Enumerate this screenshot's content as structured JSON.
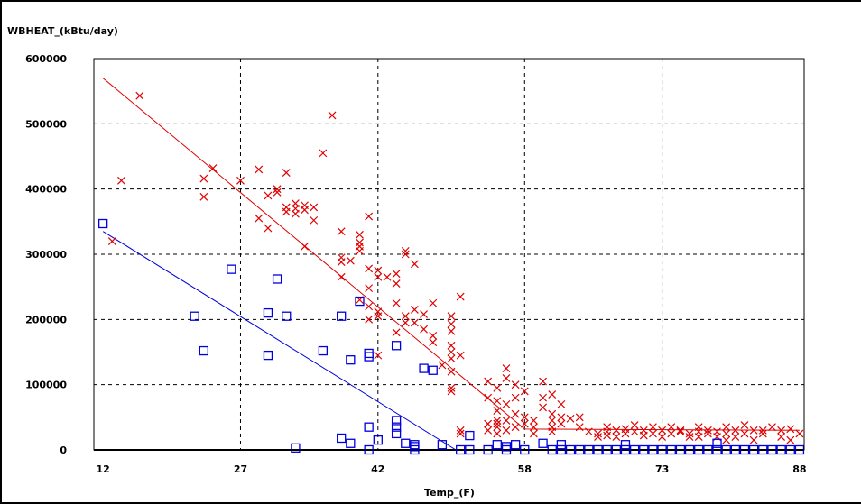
{
  "chart_data": {
    "type": "scatter",
    "ylabel": "WBHEAT_(kBtu/day)",
    "xlabel": "Temp_(F)",
    "x_ticks": [
      12,
      27,
      42,
      58,
      73,
      88
    ],
    "y_ticks": [
      0,
      100000,
      200000,
      300000,
      400000,
      500000,
      600000
    ],
    "xlim": [
      11,
      88.5
    ],
    "ylim": [
      0,
      600000
    ],
    "grid": true,
    "series": [
      {
        "marker": "x",
        "color": "#e00000",
        "points": [
          [
            13,
            320000
          ],
          [
            14,
            413000
          ],
          [
            16,
            543000
          ],
          [
            23,
            388000
          ],
          [
            23,
            416000
          ],
          [
            24,
            432000
          ],
          [
            27,
            413000
          ],
          [
            29,
            355000
          ],
          [
            29,
            430000
          ],
          [
            30,
            340000
          ],
          [
            30,
            390000
          ],
          [
            31,
            395000
          ],
          [
            31,
            400000
          ],
          [
            32,
            365000
          ],
          [
            32,
            372000
          ],
          [
            32,
            425000
          ],
          [
            33,
            362000
          ],
          [
            33,
            370000
          ],
          [
            33,
            378000
          ],
          [
            34,
            368000
          ],
          [
            34,
            375000
          ],
          [
            35,
            352000
          ],
          [
            35,
            372000
          ],
          [
            34,
            312000
          ],
          [
            36,
            455000
          ],
          [
            37,
            513000
          ],
          [
            38,
            335000
          ],
          [
            38,
            295000
          ],
          [
            38,
            288000
          ],
          [
            38,
            265000
          ],
          [
            39,
            290000
          ],
          [
            40,
            312000
          ],
          [
            40,
            318000
          ],
          [
            40,
            330000
          ],
          [
            40,
            305000
          ],
          [
            40,
            230000
          ],
          [
            41,
            358000
          ],
          [
            41,
            278000
          ],
          [
            41,
            248000
          ],
          [
            41,
            220000
          ],
          [
            41,
            200000
          ],
          [
            42,
            205000
          ],
          [
            42,
            212000
          ],
          [
            42,
            265000
          ],
          [
            42,
            145000
          ],
          [
            42,
            275000
          ],
          [
            43,
            265000
          ],
          [
            44,
            270000
          ],
          [
            44,
            255000
          ],
          [
            44,
            225000
          ],
          [
            44,
            180000
          ],
          [
            45,
            305000
          ],
          [
            45,
            300000
          ],
          [
            45,
            205000
          ],
          [
            45,
            195000
          ],
          [
            46,
            285000
          ],
          [
            46,
            215000
          ],
          [
            46,
            195000
          ],
          [
            47,
            208000
          ],
          [
            47,
            185000
          ],
          [
            48,
            175000
          ],
          [
            48,
            225000
          ],
          [
            48,
            165000
          ],
          [
            49,
            130000
          ],
          [
            50,
            205000
          ],
          [
            50,
            193000
          ],
          [
            50,
            182000
          ],
          [
            50,
            160000
          ],
          [
            50,
            150000
          ],
          [
            50,
            140000
          ],
          [
            50,
            120000
          ],
          [
            50,
            95000
          ],
          [
            50,
            90000
          ],
          [
            51,
            235000
          ],
          [
            51,
            145000
          ],
          [
            51,
            30000
          ],
          [
            51,
            25000
          ],
          [
            54,
            105000
          ],
          [
            54,
            80000
          ],
          [
            54,
            40000
          ],
          [
            54,
            30000
          ],
          [
            55,
            95000
          ],
          [
            55,
            75000
          ],
          [
            55,
            60000
          ],
          [
            55,
            45000
          ],
          [
            55,
            40000
          ],
          [
            55,
            35000
          ],
          [
            55,
            25000
          ],
          [
            56,
            125000
          ],
          [
            56,
            110000
          ],
          [
            56,
            70000
          ],
          [
            56,
            45000
          ],
          [
            56,
            30000
          ],
          [
            57,
            100000
          ],
          [
            57,
            80000
          ],
          [
            57,
            55000
          ],
          [
            57,
            35000
          ],
          [
            58,
            90000
          ],
          [
            58,
            50000
          ],
          [
            58,
            40000
          ],
          [
            59,
            45000
          ],
          [
            59,
            35000
          ],
          [
            59,
            25000
          ],
          [
            60,
            105000
          ],
          [
            60,
            80000
          ],
          [
            60,
            65000
          ],
          [
            61,
            85000
          ],
          [
            61,
            55000
          ],
          [
            61,
            45000
          ],
          [
            61,
            35000
          ],
          [
            61,
            28000
          ],
          [
            62,
            70000
          ],
          [
            62,
            50000
          ],
          [
            62,
            40000
          ],
          [
            63,
            48000
          ],
          [
            64,
            50000
          ],
          [
            64,
            35000
          ],
          [
            65,
            28000
          ],
          [
            66,
            25000
          ],
          [
            66,
            20000
          ],
          [
            67,
            35000
          ],
          [
            67,
            28000
          ],
          [
            67,
            22000
          ],
          [
            68,
            30000
          ],
          [
            68,
            20000
          ],
          [
            69,
            32000
          ],
          [
            69,
            25000
          ],
          [
            70,
            38000
          ],
          [
            70,
            28000
          ],
          [
            71,
            30000
          ],
          [
            71,
            22000
          ],
          [
            72,
            35000
          ],
          [
            72,
            25000
          ],
          [
            73,
            30000
          ],
          [
            73,
            20000
          ],
          [
            74,
            35000
          ],
          [
            74,
            25000
          ],
          [
            75,
            30000
          ],
          [
            75,
            28000
          ],
          [
            76,
            25000
          ],
          [
            76,
            20000
          ],
          [
            77,
            35000
          ],
          [
            77,
            28000
          ],
          [
            77,
            20000
          ],
          [
            78,
            30000
          ],
          [
            78,
            25000
          ],
          [
            79,
            28000
          ],
          [
            79,
            20000
          ],
          [
            80,
            35000
          ],
          [
            80,
            25000
          ],
          [
            80,
            15000
          ],
          [
            81,
            30000
          ],
          [
            81,
            20000
          ],
          [
            82,
            38000
          ],
          [
            82,
            25000
          ],
          [
            83,
            30000
          ],
          [
            83,
            15000
          ],
          [
            84,
            30000
          ],
          [
            84,
            25000
          ],
          [
            85,
            35000
          ],
          [
            86,
            30000
          ],
          [
            86,
            20000
          ],
          [
            87,
            32000
          ],
          [
            87,
            15000
          ],
          [
            88,
            25000
          ]
        ]
      },
      {
        "marker": "square",
        "color": "#0000e0",
        "points": [
          [
            12,
            347000
          ],
          [
            22,
            205000
          ],
          [
            23,
            152000
          ],
          [
            26,
            277000
          ],
          [
            30,
            210000
          ],
          [
            30,
            145000
          ],
          [
            31,
            262000
          ],
          [
            32,
            205000
          ],
          [
            33,
            3000
          ],
          [
            36,
            152000
          ],
          [
            38,
            205000
          ],
          [
            38,
            18000
          ],
          [
            39,
            138000
          ],
          [
            39,
            10000
          ],
          [
            40,
            228000
          ],
          [
            41,
            148000
          ],
          [
            41,
            143000
          ],
          [
            41,
            35000
          ],
          [
            41,
            0
          ],
          [
            42,
            15000
          ],
          [
            44,
            45000
          ],
          [
            44,
            35000
          ],
          [
            44,
            25000
          ],
          [
            44,
            160000
          ],
          [
            45,
            10000
          ],
          [
            46,
            8000
          ],
          [
            46,
            5000
          ],
          [
            46,
            0
          ],
          [
            47,
            125000
          ],
          [
            48,
            122000
          ],
          [
            49,
            8000
          ],
          [
            51,
            0
          ],
          [
            52,
            22000
          ],
          [
            52,
            0
          ],
          [
            54,
            0
          ],
          [
            55,
            8000
          ],
          [
            56,
            5000
          ],
          [
            56,
            0
          ],
          [
            57,
            8000
          ],
          [
            58,
            0
          ],
          [
            60,
            10000
          ],
          [
            61,
            0
          ],
          [
            62,
            8000
          ],
          [
            62,
            0
          ],
          [
            63,
            0
          ],
          [
            64,
            0
          ],
          [
            65,
            0
          ],
          [
            66,
            0
          ],
          [
            67,
            0
          ],
          [
            68,
            0
          ],
          [
            69,
            8000
          ],
          [
            69,
            0
          ],
          [
            70,
            0
          ],
          [
            71,
            0
          ],
          [
            72,
            0
          ],
          [
            73,
            0
          ],
          [
            74,
            0
          ],
          [
            75,
            0
          ],
          [
            76,
            0
          ],
          [
            77,
            0
          ],
          [
            78,
            0
          ],
          [
            79,
            10000
          ],
          [
            79,
            0
          ],
          [
            80,
            0
          ],
          [
            81,
            0
          ],
          [
            82,
            0
          ],
          [
            83,
            0
          ],
          [
            84,
            0
          ],
          [
            85,
            0
          ],
          [
            86,
            0
          ],
          [
            87,
            0
          ],
          [
            88,
            0
          ]
        ]
      }
    ],
    "fit_lines": [
      {
        "color": "#e00000",
        "points": [
          [
            12,
            570000
          ],
          [
            58,
            32000
          ],
          [
            88,
            30000
          ]
        ]
      },
      {
        "color": "#0000e0",
        "points": [
          [
            12,
            335000
          ],
          [
            50.5,
            0
          ],
          [
            88,
            0
          ]
        ]
      }
    ]
  }
}
